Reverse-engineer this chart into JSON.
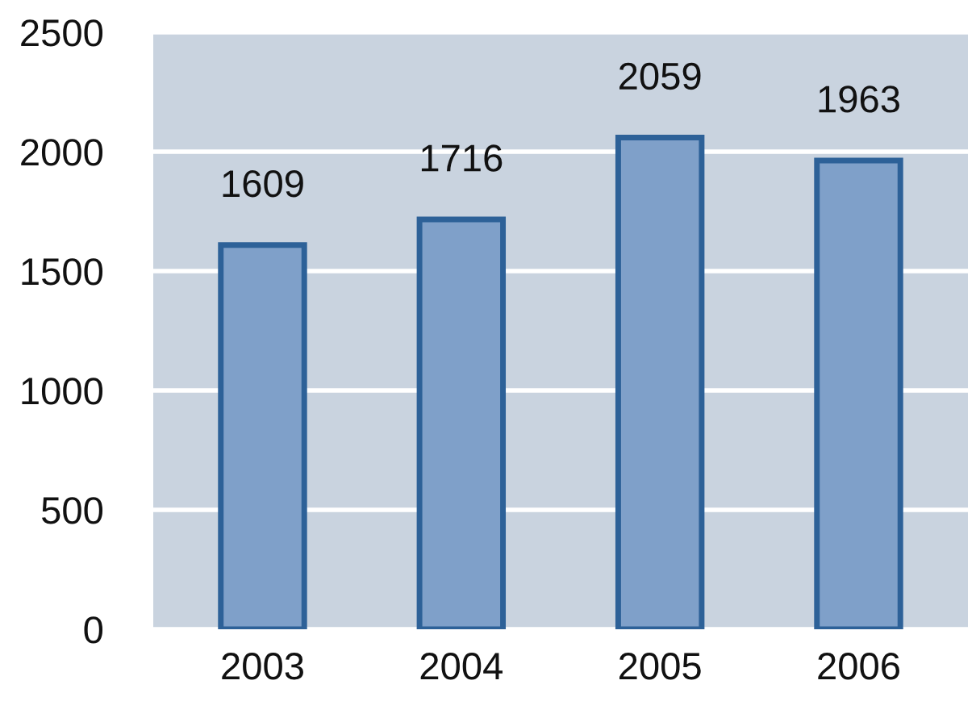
{
  "chart_data": {
    "type": "bar",
    "categories": [
      "2003",
      "2004",
      "2005",
      "2006"
    ],
    "values": [
      1609,
      1716,
      2059,
      1963
    ],
    "color": "#7fa0c9",
    "ylim": [
      0,
      2500
    ],
    "yticks": [
      0,
      500,
      1000,
      1500,
      2000,
      2500
    ],
    "grid": "y",
    "data_labels": true
  }
}
